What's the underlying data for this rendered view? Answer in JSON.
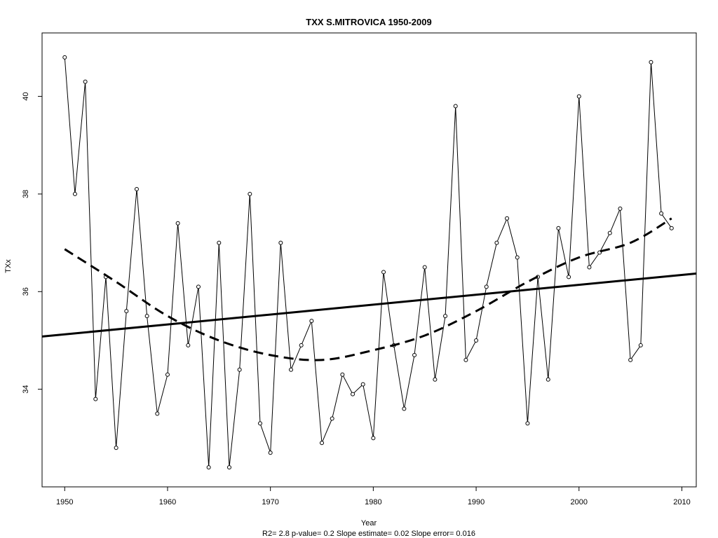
{
  "chart_data": {
    "type": "line",
    "title": "TXX   S.MITROVICA 1950-2009",
    "xlabel": "Year",
    "ylabel": "TXx",
    "footnote": "R2= 2.8  p-value= 0.2  Slope estimate= 0.02  Slope error= 0.016",
    "xlim": [
      1947.8,
      2011.4
    ],
    "ylim": [
      32.0,
      41.3
    ],
    "x_ticks": [
      1950,
      1960,
      1970,
      1980,
      1990,
      2000,
      2010
    ],
    "y_ticks": [
      34,
      36,
      38,
      40
    ],
    "grid": false,
    "legend": "none",
    "series": [
      {
        "style": "line-with-open-circles",
        "x": [
          1950,
          1951,
          1952,
          1953,
          1954,
          1955,
          1956,
          1957,
          1958,
          1959,
          1960,
          1961,
          1962,
          1963,
          1964,
          1965,
          1966,
          1967,
          1968,
          1969,
          1970,
          1971,
          1972,
          1973,
          1974,
          1975,
          1976,
          1977,
          1978,
          1979,
          1980,
          1981,
          1982,
          1983,
          1984,
          1985,
          1986,
          1987,
          1988,
          1989,
          1990,
          1991,
          1992,
          1993,
          1994,
          1995,
          1996,
          1997,
          1998,
          1999,
          2000,
          2001,
          2002,
          2003,
          2004,
          2005,
          2006,
          2007,
          2008,
          2009
        ],
        "values": [
          40.8,
          38.0,
          40.3,
          33.8,
          36.3,
          32.8,
          35.6,
          38.1,
          35.5,
          33.5,
          34.3,
          37.4,
          34.9,
          36.1,
          32.4,
          37.0,
          32.4,
          34.4,
          38.0,
          33.3,
          32.7,
          37.0,
          34.4,
          34.9,
          35.4,
          32.9,
          33.4,
          34.3,
          33.9,
          34.1,
          33.0,
          36.4,
          34.9,
          33.6,
          34.7,
          36.5,
          34.2,
          35.5,
          39.8,
          34.6,
          35.0,
          36.1,
          37.0,
          37.5,
          36.7,
          33.3,
          36.3,
          34.2,
          37.3,
          36.3,
          40.0,
          36.5,
          36.8,
          37.2,
          37.7,
          34.6,
          34.9,
          40.7,
          37.6,
          37.3
        ]
      },
      {
        "style": "solid-linear-trend",
        "x": [
          1947.8,
          2011.4
        ],
        "values": [
          35.08,
          36.37
        ]
      },
      {
        "style": "dashed-smooth-fit",
        "x": [
          1950,
          1955,
          1960,
          1965,
          1970,
          1975,
          1980,
          1985,
          1990,
          1995,
          2000,
          2005,
          2009
        ],
        "values": [
          36.87,
          36.2,
          35.5,
          35.0,
          34.7,
          34.6,
          34.8,
          35.1,
          35.6,
          36.2,
          36.7,
          37.0,
          37.5
        ]
      }
    ]
  }
}
